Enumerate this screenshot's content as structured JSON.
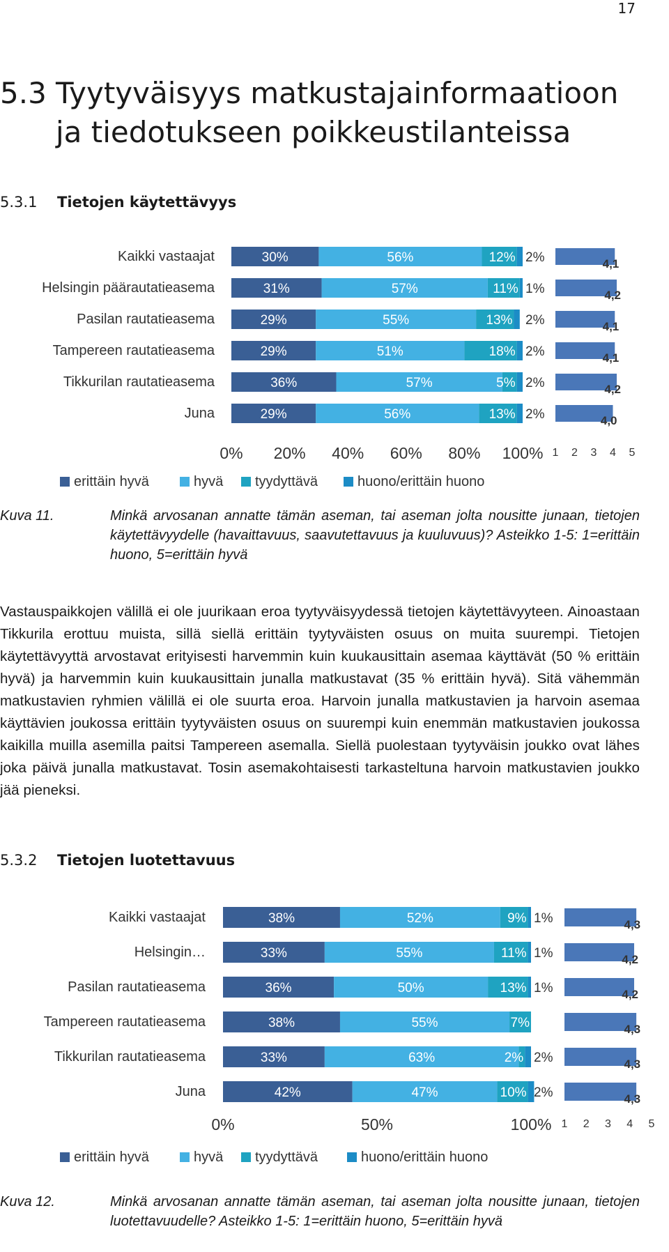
{
  "page_number": "17",
  "section": {
    "number": "5.3",
    "title": "Tyytyväisyys matkustajainformaatioon ja tiedotukseen poikkeustilanteissa"
  },
  "subsections": [
    {
      "number": "5.3.1",
      "title": "Tietojen käytettävyys"
    },
    {
      "number": "5.3.2",
      "title": "Tietojen luotettavuus"
    }
  ],
  "colors": {
    "erittain_hyva": "#3a5f95",
    "hyva": "#43b1e3",
    "tyydyttava": "#1fa3c1",
    "huono": "#1c8cc6",
    "mean_bar": "#4a77b8"
  },
  "chart_data": [
    {
      "type": "bar",
      "orientation": "horizontal-stacked-100",
      "categories": [
        "Kaikki vastaajat",
        "Helsingin päärautatieasema",
        "Pasilan rautatieasema",
        "Tampereen rautatieasema",
        "Tikkurilan rautatieasema",
        "Juna"
      ],
      "series": [
        {
          "name": "erittäin hyvä",
          "values": [
            30,
            31,
            29,
            29,
            36,
            29
          ],
          "labels": [
            "30%",
            "31%",
            "29%",
            "29%",
            "36%",
            "29%"
          ]
        },
        {
          "name": "hyvä",
          "values": [
            56,
            57,
            55,
            51,
            57,
            56
          ],
          "labels": [
            "56%",
            "57%",
            "55%",
            "51%",
            "57%",
            "56%"
          ]
        },
        {
          "name": "tyydyttävä",
          "values": [
            12,
            11,
            13,
            18,
            5,
            13
          ],
          "labels": [
            "12%",
            "11%",
            "13%",
            "18%",
            "5%",
            "13%"
          ]
        },
        {
          "name": "huono/erittäin huono",
          "values": [
            2,
            1,
            2,
            2,
            2,
            2
          ],
          "labels": [
            "2%",
            "1%",
            "2%",
            "2%",
            "2%",
            "2%"
          ]
        }
      ],
      "xticks": [
        "0%",
        "20%",
        "40%",
        "60%",
        "80%",
        "100%"
      ],
      "xlim": [
        0,
        100
      ],
      "legend_position": "bottom",
      "mean": {
        "values": [
          4.1,
          4.2,
          4.1,
          4.1,
          4.2,
          4.0
        ],
        "labels": [
          "4,1",
          "4,2",
          "4,1",
          "4,1",
          "4,2",
          "4,0"
        ],
        "xticks": [
          "1",
          "2",
          "3",
          "4",
          "5"
        ],
        "xlim": [
          1,
          5
        ]
      }
    },
    {
      "type": "bar",
      "orientation": "horizontal-stacked-100",
      "categories": [
        "Kaikki vastaajat",
        "Helsingin…",
        "Pasilan rautatieasema",
        "Tampereen rautatieasema",
        "Tikkurilan rautatieasema",
        "Juna"
      ],
      "series": [
        {
          "name": "erittäin hyvä",
          "values": [
            38,
            33,
            36,
            38,
            33,
            42
          ],
          "labels": [
            "38%",
            "33%",
            "36%",
            "38%",
            "33%",
            "42%"
          ]
        },
        {
          "name": "hyvä",
          "values": [
            52,
            55,
            50,
            55,
            63,
            47
          ],
          "labels": [
            "52%",
            "55%",
            "50%",
            "55%",
            "63%",
            "47%"
          ]
        },
        {
          "name": "tyydyttävä",
          "values": [
            9,
            11,
            13,
            7,
            2,
            10
          ],
          "labels": [
            "9%",
            "11%",
            "13%",
            "7%",
            "2%",
            "10%"
          ]
        },
        {
          "name": "huono/erittäin huono",
          "values": [
            1,
            1,
            1,
            0,
            2,
            2
          ],
          "labels": [
            "1%",
            "1%",
            "1%",
            "",
            "2%",
            "2%"
          ]
        }
      ],
      "xticks": [
        "0%",
        "50%",
        "100%"
      ],
      "xlim": [
        0,
        100
      ],
      "legend_position": "bottom",
      "mean": {
        "values": [
          4.3,
          4.2,
          4.2,
          4.3,
          4.3,
          4.3
        ],
        "labels": [
          "4,3",
          "4,2",
          "4,2",
          "4,3",
          "4,3",
          "4,3"
        ],
        "xticks": [
          "1",
          "2",
          "3",
          "4",
          "5"
        ],
        "xlim": [
          1,
          5
        ]
      }
    }
  ],
  "legend_labels": [
    "erittäin hyvä",
    "hyvä",
    "tyydyttävä",
    "huono/erittäin huono"
  ],
  "captions": [
    {
      "label": "Kuva 11.",
      "text": "Minkä arvosanan annatte tämän aseman, tai aseman jolta nousitte junaan, tietojen käytettävyydelle (havaittavuus, saavutettavuus ja kuuluvuus)? Asteikko 1-5: 1=erittäin huono, 5=erittäin hyvä"
    },
    {
      "label": "Kuva 12.",
      "text": "Minkä arvosanan annatte tämän aseman, tai aseman jolta nousitte junaan, tietojen luotettavuudelle? Asteikko 1-5: 1=erittäin huono, 5=erittäin hyvä"
    }
  ],
  "paragraph": "Vastauspaikkojen välillä ei ole juurikaan eroa tyytyväisyydessä tietojen käytettävyyteen. Ainoastaan Tikkurila erottuu muista, sillä siellä erittäin tyytyväisten osuus on muita suurempi. Tietojen käytettävyyttä arvostavat erityisesti harvemmin kuin kuukausittain asemaa käyttävät (50 % erittäin hyvä) ja harvemmin kuin kuukausittain junalla matkustavat (35 % erittäin hyvä). Sitä vähemmän matkustavien ryhmien välillä ei ole suurta eroa. Harvoin junalla matkustavien ja harvoin asemaa käyttävien joukossa erittäin tyytyväisten osuus on suurempi kuin enemmän matkustavien joukossa kaikilla muilla asemilla paitsi Tampereen asemalla. Siellä puolestaan tyytyväisin joukko ovat lähes joka päivä junalla matkustavat. Tosin asemakohtaisesti tarkasteltuna harvoin matkustavien joukko jää pieneksi."
}
